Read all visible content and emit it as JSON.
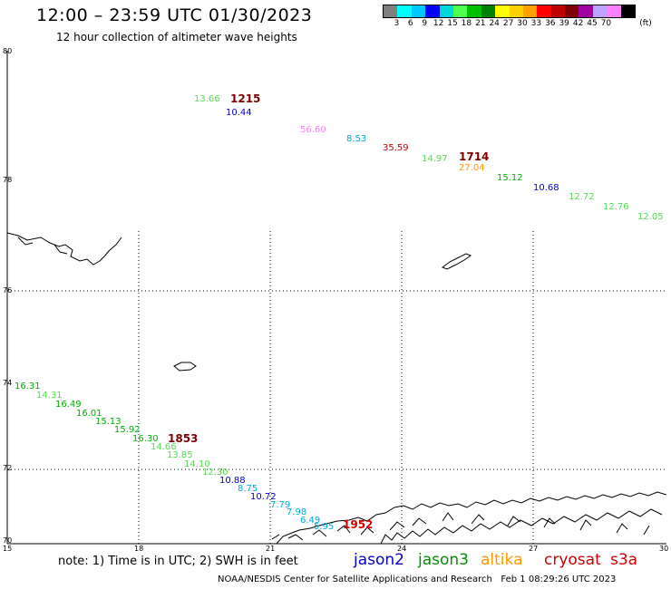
{
  "header": {
    "title": "12:00 – 23:59 UTC 01/30/2023",
    "subtitle": "12 hour collection of altimeter wave heights"
  },
  "colorbar": {
    "colors": [
      "#808080",
      "#00ffff",
      "#00c8ff",
      "#0000ff",
      "#00d8d8",
      "#50ff50",
      "#00c000",
      "#008000",
      "#ffff00",
      "#ffd000",
      "#ffa000",
      "#ff0000",
      "#c00000",
      "#800000",
      "#a000a0",
      "#c0a0ff",
      "#ff80ff",
      "#000000"
    ],
    "labels": [
      "3",
      "6",
      "9",
      "12",
      "15",
      "18",
      "21",
      "24",
      "27",
      "30",
      "33",
      "36",
      "39",
      "42",
      "45",
      "70",
      "(ft)"
    ]
  },
  "axes": {
    "lat_labels": [
      "80",
      "78",
      "76",
      "74",
      "72",
      "70"
    ],
    "lon_labels": [
      "15",
      "18",
      "21",
      "24",
      "27",
      "30"
    ]
  },
  "tracks": {
    "top": {
      "time": "1215",
      "time2": "1714",
      "values": [
        "13.66",
        "10.44",
        "56.60",
        "8.53",
        "35.59",
        "14.97",
        "27.04",
        "15.12",
        "10.68",
        "12.72",
        "12.76",
        "12.05"
      ]
    },
    "bottom": {
      "time": "1853",
      "time2": "1952",
      "values": [
        "16.31",
        "14.31",
        "16.49",
        "16.01",
        "15.13",
        "15.92",
        "16.30",
        "14.66",
        "13.85",
        "14.10",
        "12.30",
        "10.88",
        "8.75",
        "10.72",
        "7.79",
        "7.98",
        "6.49",
        "5.95"
      ]
    }
  },
  "legend": {
    "note": "note: 1) Time is in UTC; 2) SWH is in feet",
    "satellites": [
      {
        "name": "jason2",
        "color": "#0000cc"
      },
      {
        "name": "jason3",
        "color": "#009000"
      },
      {
        "name": "altika",
        "color": "#ff9900"
      },
      {
        "name": "cryosat",
        "color": "#cc0000"
      },
      {
        "name": "s3a",
        "color": "#cc0000"
      }
    ]
  },
  "footer": {
    "credit": "NOAA/NESDIS Center for Satellite Applications and Research",
    "timestamp": "Feb  1 08:29:26 UTC 2023"
  }
}
